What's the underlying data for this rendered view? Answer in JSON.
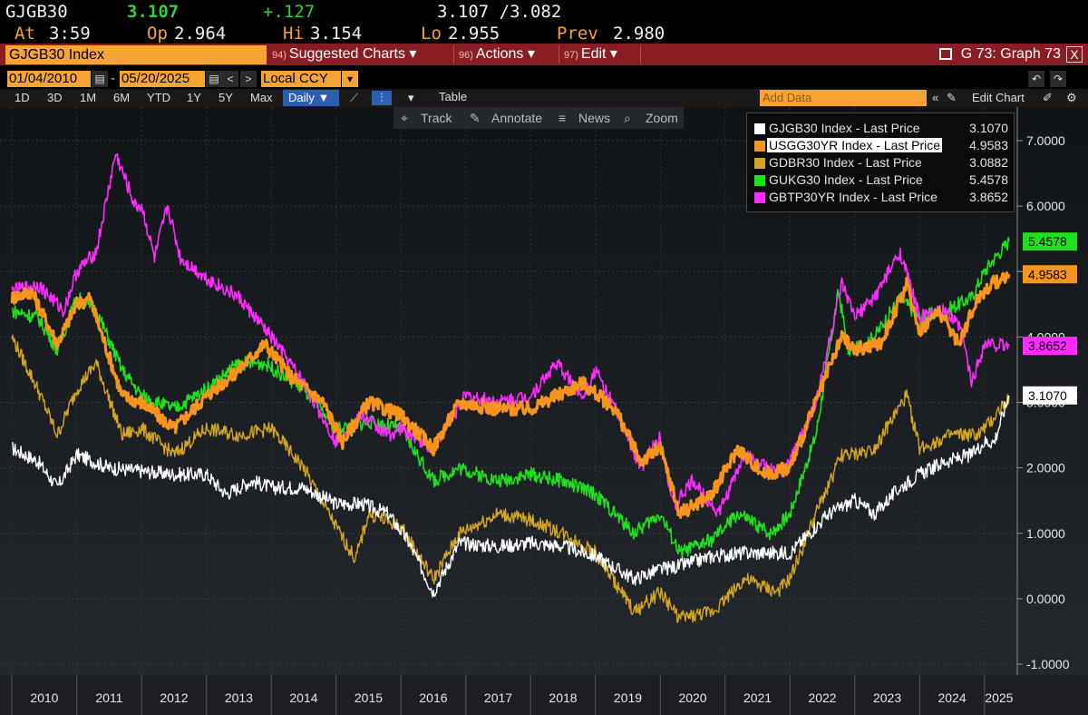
{
  "quote": {
    "ticker": "GJGB30",
    "last": "3.107",
    "change": "+.127",
    "bidask": "3.107 /3.082",
    "time_label": "At",
    "time": "3:59",
    "open_label": "Op",
    "open": "2.964",
    "high_label": "Hi",
    "high": "3.154",
    "low_label": "Lo",
    "low": "2.955",
    "prev_label": "Prev",
    "prev": "2.980"
  },
  "titlebar": {
    "security": "GJGB30 Index",
    "menus": [
      {
        "num": "94)",
        "label": "Suggested Charts ▾"
      },
      {
        "num": "96)",
        "label": "Actions ▾"
      },
      {
        "num": "97)",
        "label": "Edit ▾"
      }
    ],
    "graph": "G 73: Graph 73",
    "close": "X"
  },
  "controls": {
    "start_date": "01/04/2010",
    "end_date": "05/20/2025",
    "currency": "Local CCY",
    "periods": [
      "1D",
      "3D",
      "1M",
      "6M",
      "YTD",
      "1Y",
      "5Y",
      "Max"
    ],
    "frequency": "Daily ▼",
    "table": "Table",
    "add_data": "Add Data",
    "edit_chart": "Edit Chart"
  },
  "chart_tools": {
    "track": "Track",
    "annotate": "Annotate",
    "news": "News",
    "zoom": "Zoom"
  },
  "colors": {
    "accent": "#f5a434",
    "titlebar": "#8a1c24",
    "GJGB30": "#ffffff",
    "USGG30YR": "#f7941d",
    "GDBR30": "#d4a522",
    "GUKG30": "#1fe01f",
    "GBTP30YR": "#ff2bff"
  },
  "chart_data": {
    "type": "line",
    "title": "",
    "xlabel": "",
    "ylabel": "",
    "ylim": [
      -1.2,
      8.0
    ],
    "xlim": [
      2009.9,
      2025.45
    ],
    "grid": true,
    "legend_position": "top-right",
    "yticks": [
      "-1.0000",
      "0.0000",
      "1.0000",
      "2.0000",
      "3.0000",
      "4.0000",
      "5.0000",
      "6.0000",
      "7.0000"
    ],
    "ytick_values": [
      -1,
      0,
      1,
      2,
      3,
      4,
      5,
      6,
      7
    ],
    "xticks": [
      "2010",
      "2011",
      "2012",
      "2013",
      "2014",
      "2015",
      "2016",
      "2017",
      "2018",
      "2019",
      "2020",
      "2021",
      "2022",
      "2023",
      "2024",
      "2025"
    ],
    "series": [
      {
        "name": "GJGB30 Index - Last Price",
        "last": "3.1070",
        "color": "#ffffff",
        "x": [
          2010.0,
          2010.4,
          2010.7,
          2011.0,
          2011.5,
          2012.0,
          2012.5,
          2013.0,
          2013.3,
          2013.7,
          2014.0,
          2014.5,
          2015.0,
          2015.4,
          2015.8,
          2016.1,
          2016.5,
          2016.9,
          2017.5,
          2018.0,
          2018.5,
          2019.0,
          2019.6,
          2020.0,
          2020.3,
          2020.8,
          2021.3,
          2021.8,
          2022.0,
          2022.3,
          2022.6,
          2023.0,
          2023.3,
          2023.7,
          2024.0,
          2024.4,
          2024.8,
          2025.0,
          2025.15,
          2025.38
        ],
        "y": [
          2.3,
          2.1,
          1.7,
          2.2,
          2.0,
          1.95,
          1.9,
          1.9,
          1.6,
          1.8,
          1.7,
          1.7,
          1.45,
          1.45,
          1.3,
          0.9,
          0.1,
          0.85,
          0.8,
          0.85,
          0.8,
          0.65,
          0.3,
          0.45,
          0.5,
          0.65,
          0.7,
          0.7,
          0.7,
          1.0,
          1.3,
          1.5,
          1.3,
          1.7,
          1.9,
          2.1,
          2.2,
          2.4,
          2.4,
          3.107
        ]
      },
      {
        "name": "USGG30YR Index - Last Price",
        "last": "4.9583",
        "color": "#f7941d",
        "x": [
          2010.0,
          2010.3,
          2010.7,
          2011.0,
          2011.2,
          2011.7,
          2012.0,
          2012.5,
          2013.0,
          2013.5,
          2013.9,
          2014.3,
          2014.8,
          2015.1,
          2015.5,
          2016.0,
          2016.5,
          2016.9,
          2017.5,
          2018.0,
          2018.8,
          2019.3,
          2019.7,
          2020.0,
          2020.3,
          2020.8,
          2021.2,
          2021.6,
          2022.0,
          2022.4,
          2022.8,
          2023.0,
          2023.4,
          2023.8,
          2024.0,
          2024.3,
          2024.6,
          2024.9,
          2025.1,
          2025.38
        ],
        "y": [
          4.6,
          4.7,
          3.9,
          4.5,
          4.6,
          3.1,
          3.0,
          2.6,
          3.1,
          3.5,
          3.9,
          3.4,
          3.0,
          2.4,
          3.0,
          2.8,
          2.3,
          3.0,
          2.9,
          2.9,
          3.3,
          2.9,
          2.1,
          2.3,
          1.3,
          1.6,
          2.3,
          1.9,
          2.0,
          3.0,
          4.0,
          3.8,
          3.9,
          4.8,
          4.1,
          4.4,
          3.9,
          4.6,
          4.8,
          4.958
        ]
      },
      {
        "name": "GDBR30 Index - Last Price",
        "last": "3.0882",
        "color": "#d4a522",
        "x": [
          2010.0,
          2010.4,
          2010.7,
          2011.0,
          2011.3,
          2011.7,
          2012.0,
          2012.5,
          2013.0,
          2013.5,
          2014.0,
          2014.5,
          2015.0,
          2015.3,
          2015.5,
          2016.0,
          2016.5,
          2016.9,
          2017.5,
          2018.0,
          2018.5,
          2019.0,
          2019.6,
          2020.0,
          2020.3,
          2020.8,
          2021.3,
          2021.8,
          2022.0,
          2022.4,
          2022.8,
          2023.0,
          2023.3,
          2023.8,
          2024.0,
          2024.5,
          2024.9,
          2025.1,
          2025.38
        ],
        "y": [
          4.0,
          3.2,
          2.5,
          3.2,
          3.6,
          2.5,
          2.6,
          2.2,
          2.6,
          2.5,
          2.6,
          2.0,
          1.1,
          0.6,
          1.3,
          1.1,
          0.3,
          1.0,
          1.3,
          1.2,
          1.0,
          0.7,
          -0.2,
          0.1,
          -0.3,
          -0.2,
          0.3,
          0.1,
          0.3,
          1.3,
          2.2,
          2.2,
          2.3,
          3.1,
          2.3,
          2.5,
          2.5,
          2.7,
          3.088
        ]
      },
      {
        "name": "GUKG30 Index - Last Price",
        "last": "5.4578",
        "color": "#1fe01f",
        "x": [
          2010.0,
          2010.4,
          2010.7,
          2011.0,
          2011.3,
          2011.7,
          2012.0,
          2012.5,
          2013.0,
          2013.5,
          2013.9,
          2014.5,
          2015.0,
          2015.5,
          2016.0,
          2016.5,
          2016.9,
          2017.5,
          2018.0,
          2018.5,
          2019.0,
          2019.6,
          2020.0,
          2020.3,
          2020.8,
          2021.2,
          2021.7,
          2022.0,
          2022.4,
          2022.75,
          2022.9,
          2023.0,
          2023.3,
          2023.7,
          2024.0,
          2024.4,
          2024.8,
          2025.0,
          2025.15,
          2025.38
        ],
        "y": [
          4.4,
          4.3,
          3.8,
          4.6,
          4.4,
          3.5,
          3.1,
          2.9,
          3.2,
          3.6,
          3.6,
          3.2,
          2.6,
          2.7,
          2.6,
          1.8,
          2.0,
          1.8,
          1.9,
          1.8,
          1.6,
          1.0,
          1.3,
          0.7,
          0.9,
          1.3,
          1.0,
          1.3,
          2.5,
          4.7,
          3.8,
          3.8,
          4.0,
          4.6,
          4.3,
          4.4,
          4.6,
          5.0,
          5.2,
          5.458
        ]
      },
      {
        "name": "GBTP30YR Index - Last Price",
        "last": "3.8652",
        "color": "#ff2bff",
        "x": [
          2010.0,
          2010.4,
          2010.8,
          2011.0,
          2011.3,
          2011.6,
          2011.9,
          2012.0,
          2012.2,
          2012.4,
          2012.6,
          2013.0,
          2013.5,
          2014.0,
          2014.5,
          2015.0,
          2015.4,
          2015.8,
          2016.0,
          2016.5,
          2017.0,
          2017.5,
          2018.0,
          2018.4,
          2018.8,
          2019.0,
          2019.4,
          2019.7,
          2020.0,
          2020.2,
          2020.5,
          2020.9,
          2021.3,
          2021.8,
          2022.0,
          2022.4,
          2022.8,
          2023.0,
          2023.3,
          2023.7,
          2024.0,
          2024.4,
          2024.65,
          2024.8,
          2025.0,
          2025.38
        ],
        "y": [
          4.7,
          4.8,
          4.4,
          5.0,
          5.3,
          6.8,
          6.0,
          6.0,
          5.2,
          6.0,
          5.2,
          4.9,
          4.6,
          4.0,
          3.3,
          2.4,
          2.8,
          2.5,
          2.6,
          2.3,
          3.1,
          3.0,
          3.1,
          3.6,
          3.1,
          3.5,
          2.7,
          2.0,
          2.5,
          1.4,
          1.8,
          1.3,
          2.2,
          1.9,
          2.1,
          3.0,
          4.8,
          4.3,
          4.6,
          5.3,
          4.3,
          4.4,
          4.1,
          3.3,
          3.9,
          3.865
        ]
      }
    ]
  }
}
